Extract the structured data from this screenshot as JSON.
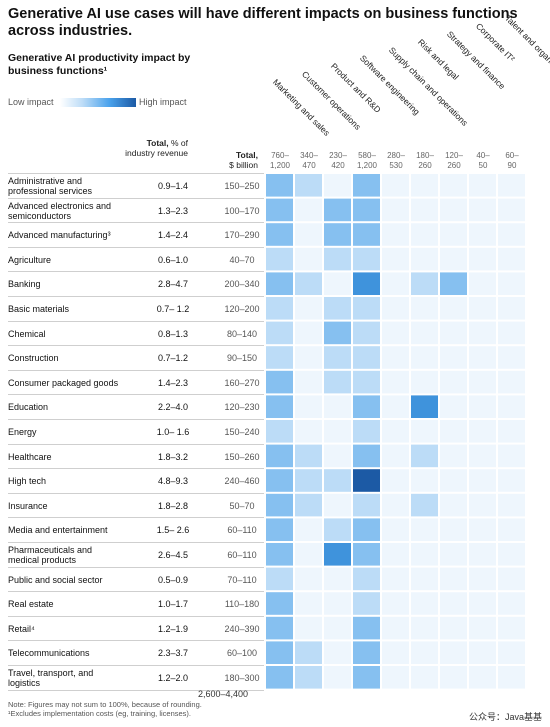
{
  "title": "Generative AI use cases will have different impacts on business functions across industries.",
  "subtitle": "Generative AI productivity impact by business functions¹",
  "legend": {
    "low": "Low impact",
    "high": "High impact"
  },
  "columns": {
    "revenue_header": {
      "bold": "Total,",
      "rest": " % of industry revenue"
    },
    "total_header": {
      "bold": "Total,",
      "rest": "$ billion"
    }
  },
  "total_sum": "2,600–4,400",
  "notes": [
    "Note: Figures may not sum to 100%, because of rounding.",
    "¹Excludes implementation costs (eg, training, licenses)."
  ],
  "watermark": "公众号：Java基基",
  "chart_data": {
    "type": "heatmap",
    "title": "Generative AI productivity impact by business functions¹",
    "functions": [
      {
        "name": "Marketing and sales",
        "total": "760–\n1,200"
      },
      {
        "name": "Customer operations",
        "total": "340–\n470"
      },
      {
        "name": "Product and R&D",
        "total": "230–\n420"
      },
      {
        "name": "Software engineering",
        "total": "580–\n1,200"
      },
      {
        "name": "Supply chain and operations",
        "total": "280–\n530"
      },
      {
        "name": "Risk and legal",
        "total": "180–\n260"
      },
      {
        "name": "Strategy and finance",
        "total": "120–\n260"
      },
      {
        "name": "Corporate IT²",
        "total": "40–\n50"
      },
      {
        "name": "Talent and organization",
        "total": "60–\n90"
      }
    ],
    "industries": [
      {
        "name": "Administrative and professional services",
        "revenue": "0.9–1.4",
        "total": "150–250",
        "impact": [
          3,
          2,
          1,
          3,
          1,
          1,
          1,
          1,
          1
        ]
      },
      {
        "name": "Advanced electronics and semiconductors",
        "revenue": "1.3–2.3",
        "total": "100–170",
        "impact": [
          3,
          1,
          3,
          3,
          1,
          1,
          1,
          1,
          1
        ]
      },
      {
        "name": "Advanced manufacturing³",
        "revenue": "1.4–2.4",
        "total": "170–290",
        "impact": [
          3,
          1,
          3,
          3,
          1,
          1,
          1,
          1,
          1
        ]
      },
      {
        "name": "Agriculture",
        "revenue": "0.6–1.0",
        "total": "40–70",
        "impact": [
          2,
          1,
          2,
          2,
          1,
          1,
          1,
          1,
          1
        ]
      },
      {
        "name": "Banking",
        "revenue": "2.8–4.7",
        "total": "200–340",
        "impact": [
          3,
          2,
          1,
          4,
          1,
          2,
          3,
          1,
          1
        ]
      },
      {
        "name": "Basic materials",
        "revenue": "0.7– 1.2",
        "total": "120–200",
        "impact": [
          2,
          1,
          2,
          2,
          1,
          1,
          1,
          1,
          1
        ]
      },
      {
        "name": "Chemical",
        "revenue": "0.8–1.3",
        "total": "80–140",
        "impact": [
          2,
          1,
          3,
          2,
          1,
          1,
          1,
          1,
          1
        ]
      },
      {
        "name": "Construction",
        "revenue": "0.7–1.2",
        "total": "90–150",
        "impact": [
          2,
          1,
          2,
          2,
          1,
          1,
          1,
          1,
          1
        ]
      },
      {
        "name": "Consumer packaged goods",
        "revenue": "1.4–2.3",
        "total": "160–270",
        "impact": [
          3,
          1,
          2,
          2,
          1,
          1,
          1,
          1,
          1
        ]
      },
      {
        "name": "Education",
        "revenue": "2.2–4.0",
        "total": "120–230",
        "impact": [
          3,
          1,
          1,
          3,
          1,
          4,
          1,
          1,
          1
        ]
      },
      {
        "name": "Energy",
        "revenue": "1.0– 1.6",
        "total": "150–240",
        "impact": [
          2,
          1,
          1,
          2,
          1,
          1,
          1,
          1,
          1
        ]
      },
      {
        "name": "Healthcare",
        "revenue": "1.8–3.2",
        "total": "150–260",
        "impact": [
          3,
          2,
          1,
          3,
          1,
          2,
          1,
          1,
          1
        ]
      },
      {
        "name": "High tech",
        "revenue": "4.8–9.3",
        "total": "240–460",
        "impact": [
          3,
          2,
          2,
          5,
          1,
          1,
          1,
          1,
          1
        ]
      },
      {
        "name": "Insurance",
        "revenue": "1.8–2.8",
        "total": "50–70",
        "impact": [
          3,
          2,
          1,
          2,
          1,
          2,
          1,
          1,
          1
        ]
      },
      {
        "name": "Media and entertainment",
        "revenue": "1.5– 2.6",
        "total": "60–110",
        "impact": [
          3,
          1,
          2,
          3,
          1,
          1,
          1,
          1,
          1
        ]
      },
      {
        "name": "Pharmaceuticals and medical products",
        "revenue": "2.6–4.5",
        "total": "60–110",
        "impact": [
          3,
          1,
          4,
          3,
          1,
          1,
          1,
          1,
          1
        ]
      },
      {
        "name": "Public and social sector",
        "revenue": "0.5–0.9",
        "total": "70–110",
        "impact": [
          2,
          1,
          1,
          2,
          1,
          1,
          1,
          1,
          1
        ]
      },
      {
        "name": "Real estate",
        "revenue": "1.0–1.7",
        "total": "110–180",
        "impact": [
          3,
          1,
          1,
          2,
          1,
          1,
          1,
          1,
          1
        ]
      },
      {
        "name": "Retail⁴",
        "revenue": "1.2–1.9",
        "total": "240–390",
        "impact": [
          3,
          1,
          1,
          3,
          1,
          1,
          1,
          1,
          1
        ]
      },
      {
        "name": "Telecommunications",
        "revenue": "2.3–3.7",
        "total": "60–100",
        "impact": [
          3,
          2,
          1,
          3,
          1,
          1,
          1,
          1,
          1
        ]
      },
      {
        "name": "Travel, transport, and logistics",
        "revenue": "1.2–2.0",
        "total": "180–300",
        "impact": [
          3,
          2,
          1,
          3,
          1,
          1,
          1,
          1,
          1
        ]
      }
    ],
    "impact_scale": {
      "min": 1,
      "max": 5,
      "low_label": "Low impact",
      "high_label": "High impact"
    },
    "colors": [
      "#eef6fd",
      "#bcdcf7",
      "#86c0f0",
      "#3f93dc",
      "#1c5aa5"
    ]
  }
}
